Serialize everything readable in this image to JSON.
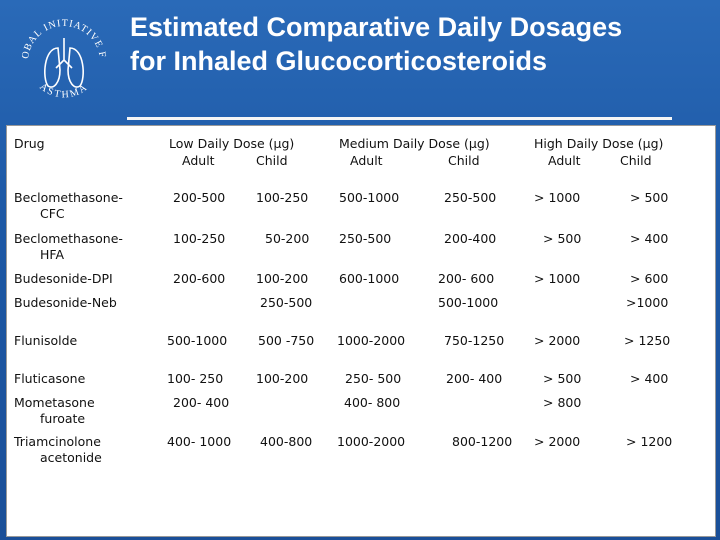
{
  "title_line1": "Estimated Comparative Daily Dosages",
  "title_line2": "for Inhaled Glucocorticosteroids",
  "logo": {
    "top": "GLOBAL INITIATIVE FOR",
    "bottom": "ASTHMA"
  },
  "headers": {
    "drug": "Drug",
    "low": "Low Daily Dose (μg)",
    "medium": "Medium Daily Dose (μg)",
    "high": "High Daily Dose (μg)",
    "adult": "Adult",
    "child": "Child"
  },
  "rows": [
    {
      "drug": [
        "Beclomethasone-",
        "CFC"
      ],
      "low_adult": "200-500",
      "low_child": "100-250",
      "med_adult": "500-1000",
      "med_child": "250-500",
      "high_adult": "> 1000",
      "high_child": "> 500"
    },
    {
      "drug": [
        "Beclomethasone-",
        "HFA"
      ],
      "low_adult": "100-250",
      "low_child": "50-200",
      "med_adult": "250-500",
      "med_child": "200-400",
      "high_adult": "> 500",
      "high_child": "> 400"
    },
    {
      "drug": [
        "Budesonide-DPI"
      ],
      "low_adult": "200-600",
      "low_child": "100-200",
      "med_adult": "600-1000",
      "med_child": "200- 600",
      "high_adult": "> 1000",
      "high_child": "> 600"
    },
    {
      "drug": [
        "Budesonide-Neb"
      ],
      "low": "250-500",
      "med": "500-1000",
      "high": ">1000"
    },
    {
      "drug": [
        "Flunisolde"
      ],
      "low_adult": "500-1000",
      "low_child": "500 -750",
      "med_adult": "1000-2000",
      "med_child": "750-1250",
      "high_adult": "> 2000",
      "high_child": "> 1250"
    },
    {
      "drug": [
        "Fluticasone"
      ],
      "low_adult": "100- 250",
      "low_child": "100-200",
      "med_adult": "250- 500",
      "med_child": "200- 400",
      "high_adult": "> 500",
      "high_child": "> 400"
    },
    {
      "drug": [
        "Mometasone",
        "furoate"
      ],
      "low": "200- 400",
      "med": "400- 800",
      "high": "> 800"
    },
    {
      "drug": [
        "Triamcinolone",
        "acetonide"
      ],
      "low_adult": "400- 1000",
      "low_child": "400-800",
      "med_adult": "1000-2000",
      "med_child": "800-1200",
      "high_adult": "> 2000",
      "high_child": "> 1200"
    }
  ]
}
